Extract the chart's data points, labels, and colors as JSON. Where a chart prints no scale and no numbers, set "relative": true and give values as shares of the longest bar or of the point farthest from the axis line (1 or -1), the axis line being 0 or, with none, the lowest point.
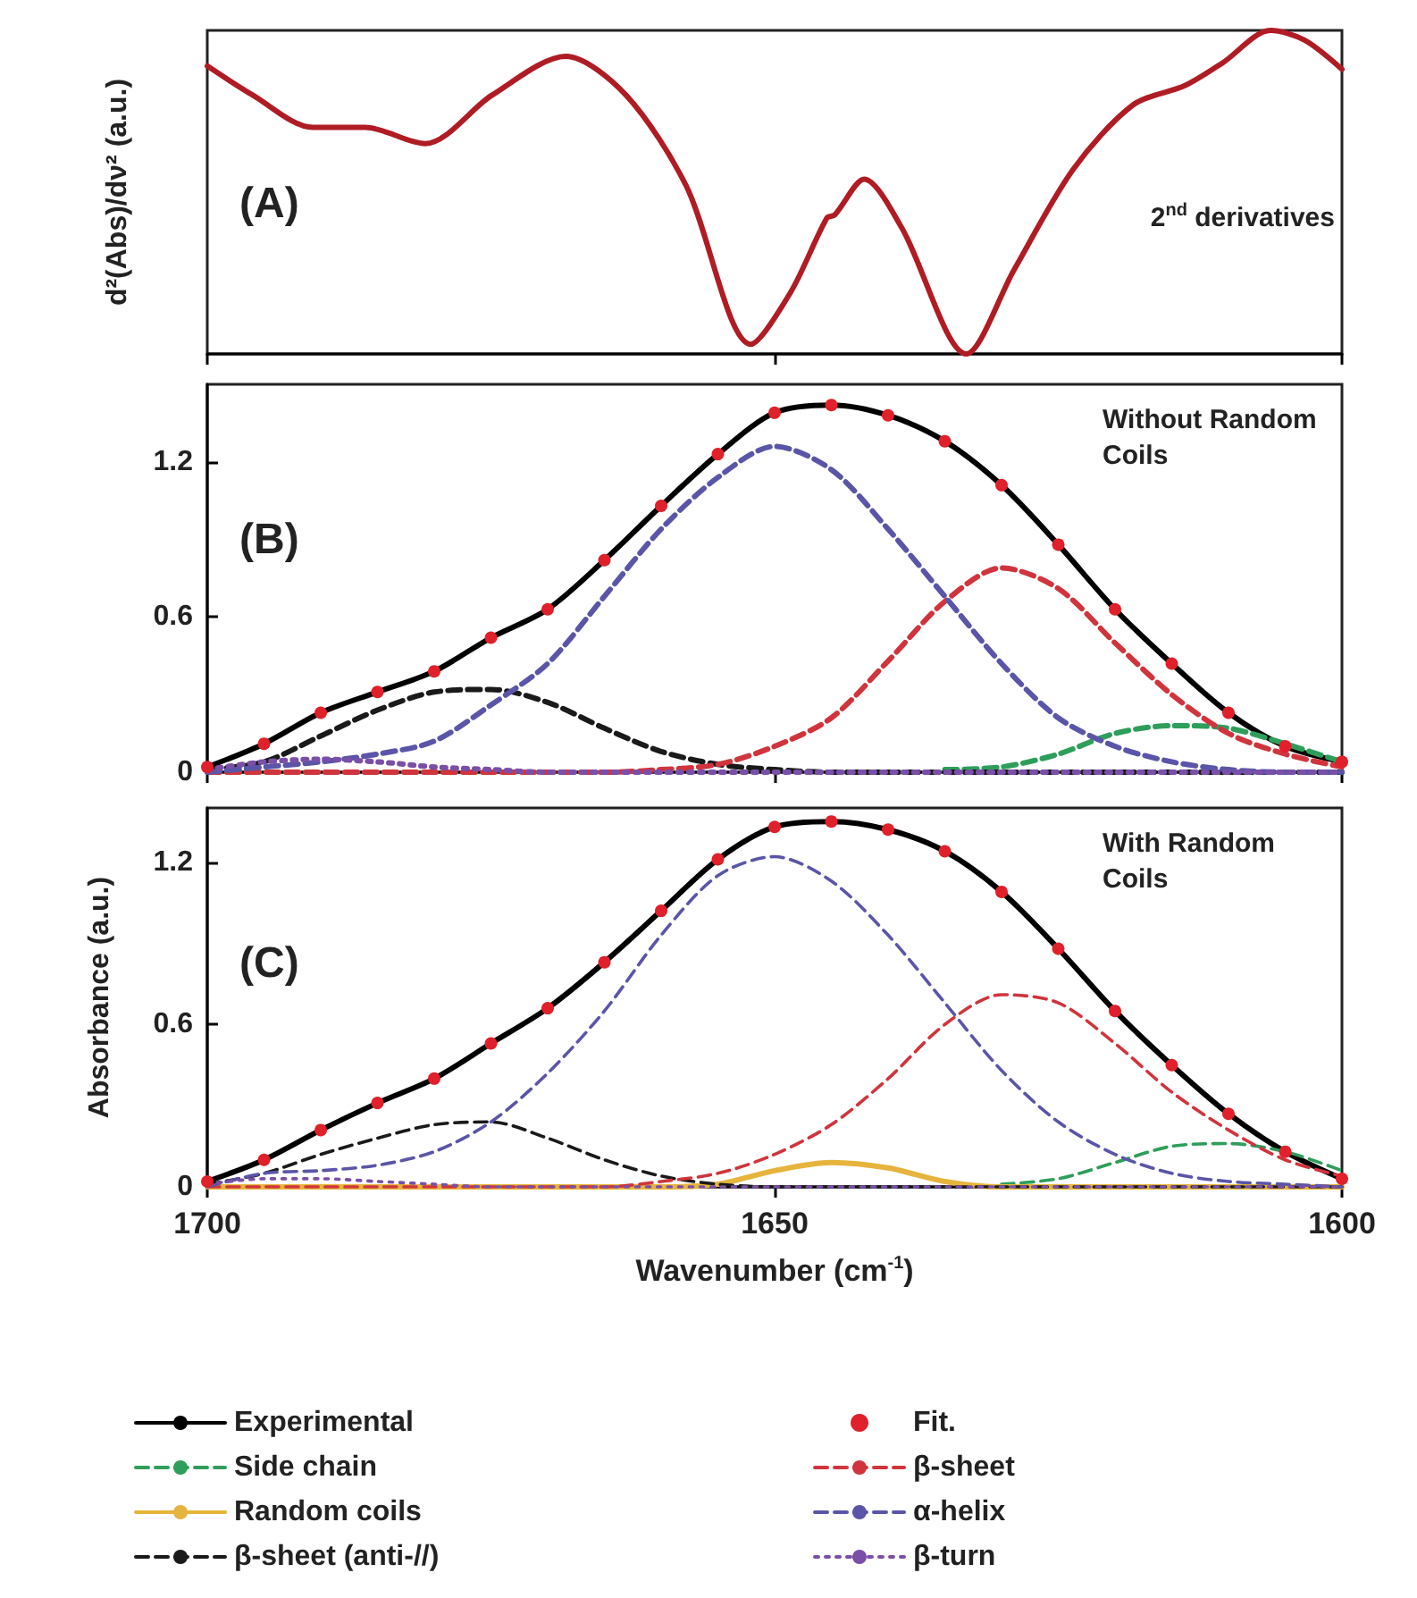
{
  "chart_data": [
    {
      "type": "line",
      "ylabel": "d²(Abs)/dν² (a.u.)",
      "relative": true,
      "tick_labels": false,
      "xlim": [
        1700,
        1600
      ],
      "xticks": [
        1700,
        1650,
        1600
      ],
      "annotations": [
        "(A)",
        "2$^{nd}$ derivatives"
      ],
      "x": [
        1700,
        1696,
        1690.7,
        1686.1,
        1680.8,
        1674.9,
        1668.4,
        1663.1,
        1657.8,
        1652.1,
        1648.6,
        1645.4,
        1644.7,
        1642.1,
        1638.8,
        1633.1,
        1628.9,
        1623.7,
        1618.4,
        1613.8,
        1610.5,
        1606.3,
        1603.3,
        1600
      ],
      "series": [
        {
          "color": "#b01c24",
          "line_style": "solid",
          "marker": "none",
          "values": [
            0.89,
            0.8,
            0.7,
            0.7,
            0.65,
            0.8,
            0.92,
            0.8,
            0.52,
            0.03,
            0.19,
            0.42,
            0.43,
            0.54,
            0.39,
            0,
            0.26,
            0.57,
            0.77,
            0.83,
            0.9,
            1,
            0.97,
            0.88
          ]
        }
      ]
    },
    {
      "type": "line",
      "tick_labels": "y",
      "xlim": [
        1700,
        1600
      ],
      "xticks": [
        1700,
        1650,
        1600
      ],
      "ylim": [
        0,
        1.5
      ],
      "yticks": [
        0,
        0.6,
        1.2
      ],
      "annotations": [
        "(B)",
        "Without Random Coils"
      ],
      "x": [
        1700,
        1695,
        1690,
        1685,
        1680,
        1675,
        1670,
        1665,
        1660,
        1655,
        1650,
        1645,
        1640,
        1635,
        1630,
        1625,
        1620,
        1615,
        1610,
        1605,
        1600
      ],
      "series": [
        {
          "color": "#000000",
          "line_style": "solid",
          "marker": "none",
          "values": [
            0.02,
            0.11,
            0.23,
            0.31,
            0.39,
            0.52,
            0.63,
            0.82,
            1.03,
            1.23,
            1.39,
            1.42,
            1.38,
            1.28,
            1.11,
            0.88,
            0.63,
            0.42,
            0.23,
            0.1,
            0.04
          ]
        },
        {
          "color": "#2e9e5b",
          "line_style": "dashed",
          "marker": "none",
          "values": [
            null,
            null,
            null,
            null,
            null,
            null,
            null,
            null,
            null,
            null,
            null,
            null,
            null,
            0.01,
            0.02,
            0.07,
            0.15,
            0.18,
            0.17,
            0.11,
            0.04
          ]
        },
        {
          "color": "#1a1a1a",
          "line_style": "dashed",
          "marker": "none",
          "values": [
            0.01,
            0.04,
            0.14,
            0.24,
            0.31,
            0.32,
            0.27,
            0.17,
            0.08,
            0.03,
            0.01,
            0,
            0,
            0,
            0,
            0,
            0,
            0,
            0,
            0,
            0
          ]
        },
        {
          "type": "scatter",
          "color": "#e0202a",
          "marker": "circle",
          "values": [
            0.02,
            0.11,
            0.23,
            0.31,
            0.39,
            0.52,
            0.63,
            0.82,
            1.03,
            1.23,
            1.39,
            1.42,
            1.38,
            1.28,
            1.11,
            0.88,
            0.63,
            0.42,
            0.23,
            0.1,
            0.04
          ]
        },
        {
          "color": "#d0343c",
          "line_style": "dashed",
          "marker": "none",
          "values": [
            0,
            0,
            0,
            0,
            0,
            0,
            0,
            0,
            0.01,
            0.03,
            0.1,
            0.21,
            0.43,
            0.66,
            0.79,
            0.71,
            0.5,
            0.3,
            0.15,
            0.07,
            0.02
          ]
        },
        {
          "color": "#5a55a8",
          "line_style": "dashed",
          "marker": "none",
          "values": [
            0,
            0.02,
            0.04,
            0.07,
            0.12,
            0.26,
            0.42,
            0.68,
            0.94,
            1.14,
            1.26,
            1.17,
            0.94,
            0.68,
            0.42,
            0.21,
            0.1,
            0.04,
            0.01,
            0,
            0
          ]
        },
        {
          "color": "#7a4fa8",
          "line_style": "dotted",
          "marker": "none",
          "values": [
            0.01,
            0.04,
            0.05,
            0.04,
            0.02,
            0.01,
            0,
            0,
            0,
            0,
            0,
            0,
            0,
            0,
            0,
            0,
            0,
            0,
            0,
            0,
            0
          ]
        }
      ]
    },
    {
      "type": "line",
      "xlabel": "Wavenumber (cm$^{-1}$)",
      "ylabel": "Absorbance (a.u.)",
      "legend": "bottom",
      "xlim": [
        1700,
        1600
      ],
      "xticks": [
        1700,
        1650,
        1600
      ],
      "ylim": [
        0,
        1.4
      ],
      "yticks": [
        0,
        0.6,
        1.2
      ],
      "annotations": [
        "(C)",
        "With Random Coils"
      ],
      "x": [
        1700,
        1695,
        1690,
        1685,
        1680,
        1675,
        1670,
        1665,
        1660,
        1655,
        1650,
        1645,
        1640,
        1635,
        1630,
        1625,
        1620,
        1615,
        1610,
        1605,
        1600
      ],
      "series": [
        {
          "name": "Experimental",
          "color": "#000000",
          "line_style": "solid",
          "marker": "none",
          "values": [
            0.02,
            0.1,
            0.21,
            0.31,
            0.4,
            0.53,
            0.66,
            0.83,
            1.02,
            1.21,
            1.33,
            1.35,
            1.32,
            1.24,
            1.09,
            0.88,
            0.65,
            0.45,
            0.27,
            0.13,
            0.03
          ]
        },
        {
          "name": "Side chain",
          "color": "#2e9e5b",
          "line_style": "dashed",
          "marker": "none",
          "values": [
            null,
            null,
            null,
            null,
            null,
            null,
            null,
            null,
            null,
            null,
            null,
            null,
            null,
            null,
            0.01,
            0.03,
            0.09,
            0.15,
            0.16,
            0.13,
            0.06
          ]
        },
        {
          "name": "Random coils",
          "color": "#e6b43c",
          "line_style": "solid",
          "marker": "none",
          "values": [
            0,
            0,
            0,
            0,
            0,
            0,
            0,
            0,
            0,
            0.01,
            0.06,
            0.09,
            0.07,
            0.02,
            0,
            0,
            0,
            0,
            0,
            0,
            0
          ]
        },
        {
          "name": "β-sheet (anti-//)",
          "color": "#1a1a1a",
          "line_style": "dashed",
          "marker": "none",
          "values": [
            0.01,
            0.05,
            0.12,
            0.18,
            0.23,
            0.24,
            0.18,
            0.1,
            0.04,
            0.01,
            0,
            0,
            0,
            0,
            0,
            0,
            0,
            0,
            0,
            0,
            0
          ]
        },
        {
          "name": "Fit.",
          "type": "scatter",
          "color": "#e0202a",
          "marker": "circle",
          "values": [
            0.02,
            0.1,
            0.21,
            0.31,
            0.4,
            0.53,
            0.66,
            0.83,
            1.02,
            1.21,
            1.33,
            1.35,
            1.32,
            1.24,
            1.09,
            0.88,
            0.65,
            0.45,
            0.27,
            0.13,
            0.03
          ]
        },
        {
          "name": "β-sheet",
          "color": "#d0343c",
          "line_style": "dashed",
          "marker": "none",
          "values": [
            0,
            0,
            0,
            0,
            0,
            0,
            0,
            0,
            0.02,
            0.05,
            0.12,
            0.23,
            0.4,
            0.6,
            0.71,
            0.68,
            0.53,
            0.35,
            0.21,
            0.1,
            0.04
          ]
        },
        {
          "name": "α-helix",
          "color": "#5a55a8",
          "line_style": "dashed",
          "marker": "none",
          "values": [
            0,
            0.05,
            0.06,
            0.08,
            0.13,
            0.24,
            0.42,
            0.65,
            0.93,
            1.15,
            1.22,
            1.13,
            0.93,
            0.68,
            0.43,
            0.24,
            0.12,
            0.05,
            0.02,
            0.01,
            0
          ]
        },
        {
          "name": "β-turn",
          "color": "#7a4fa8",
          "line_style": "dotted",
          "marker": "none",
          "values": [
            0.01,
            0.03,
            0.03,
            0.02,
            0.01,
            0,
            0,
            0,
            0,
            0,
            0,
            0,
            0,
            0,
            0,
            0,
            0,
            0,
            0,
            0,
            0
          ]
        }
      ]
    }
  ]
}
